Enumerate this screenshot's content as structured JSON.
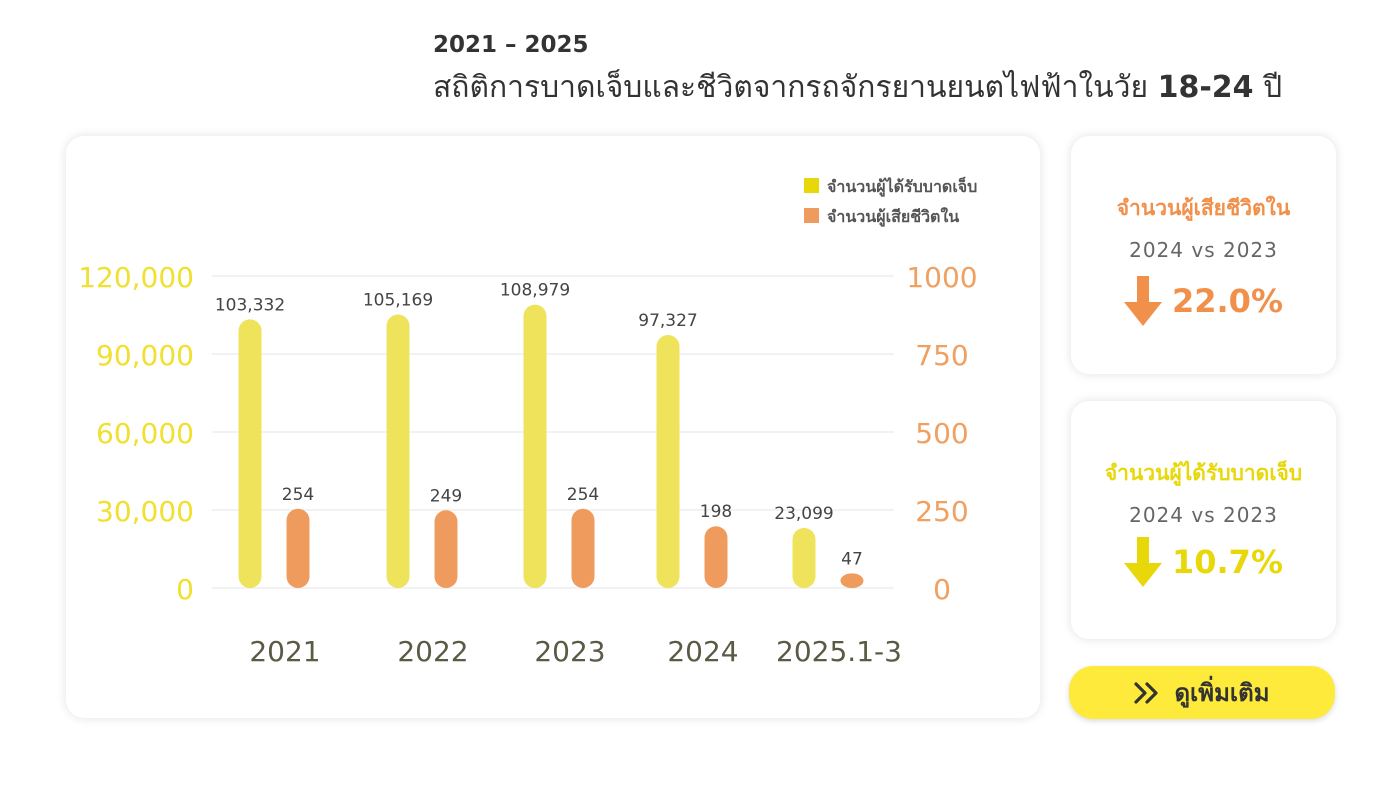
{
  "header": {
    "subtitle": "2021 – 2025",
    "title_text": "สถิติการบาดเจ็บและชีวิตจากรถจักรยานยนตไฟฟ้าในวัย ",
    "title_age": "18-24",
    "title_suffix": " ปี"
  },
  "colors": {
    "injured": "#EEE35A",
    "injured_legend": "#E8D80A",
    "deaths": "#F09B5E",
    "deaths_stat": "#F0904A",
    "left_axis_text": "#F0E030",
    "right_axis_text": "#F0A060",
    "category_text": "#5A5A45",
    "button_bg": "#FDEA3A"
  },
  "chart_data": {
    "type": "bar",
    "categories": [
      "2021",
      "2022",
      "2023",
      "2024",
      "2025.1-3"
    ],
    "series": [
      {
        "name": "จำนวนผู้ได้รับบาดเจ็บ",
        "axis": "left",
        "values": [
          103332,
          105169,
          108979,
          97327,
          23099
        ],
        "labels": [
          "103,332",
          "105,169",
          "108,979",
          "97,327",
          "23,099"
        ]
      },
      {
        "name": "จำนวนผู้เสียชีวิตใน",
        "axis": "right",
        "values": [
          254,
          249,
          254,
          198,
          47
        ],
        "labels": [
          "254",
          "249",
          "254",
          "198",
          "47"
        ]
      }
    ],
    "left_axis": {
      "ylim": [
        0,
        120000
      ],
      "ticks": [
        0,
        30000,
        60000,
        90000,
        120000
      ],
      "tick_labels": [
        "0",
        "30,000",
        "60,000",
        "90,000",
        "120,000"
      ]
    },
    "right_axis": {
      "ylim": [
        0,
        1000
      ],
      "ticks": [
        0,
        250,
        500,
        750,
        1000
      ],
      "tick_labels": [
        "0",
        "250",
        "500",
        "750",
        "1000"
      ]
    },
    "grid": true,
    "legend": "top-right"
  },
  "stats": [
    {
      "title": "จำนวนผู้เสียชีวิตใน",
      "compare": "2024  vs  2023",
      "direction": "down",
      "value": "22.0%",
      "color": "#F0904A"
    },
    {
      "title": "จำนวนผู้ได้รับบาดเจ็บ",
      "compare": "2024  vs  2023",
      "direction": "down",
      "value": "10.7%",
      "color": "#E8D80A"
    }
  ],
  "more_button": {
    "label": "ดูเพิ่มเติม",
    "icon": "double-chevron-right-icon"
  }
}
